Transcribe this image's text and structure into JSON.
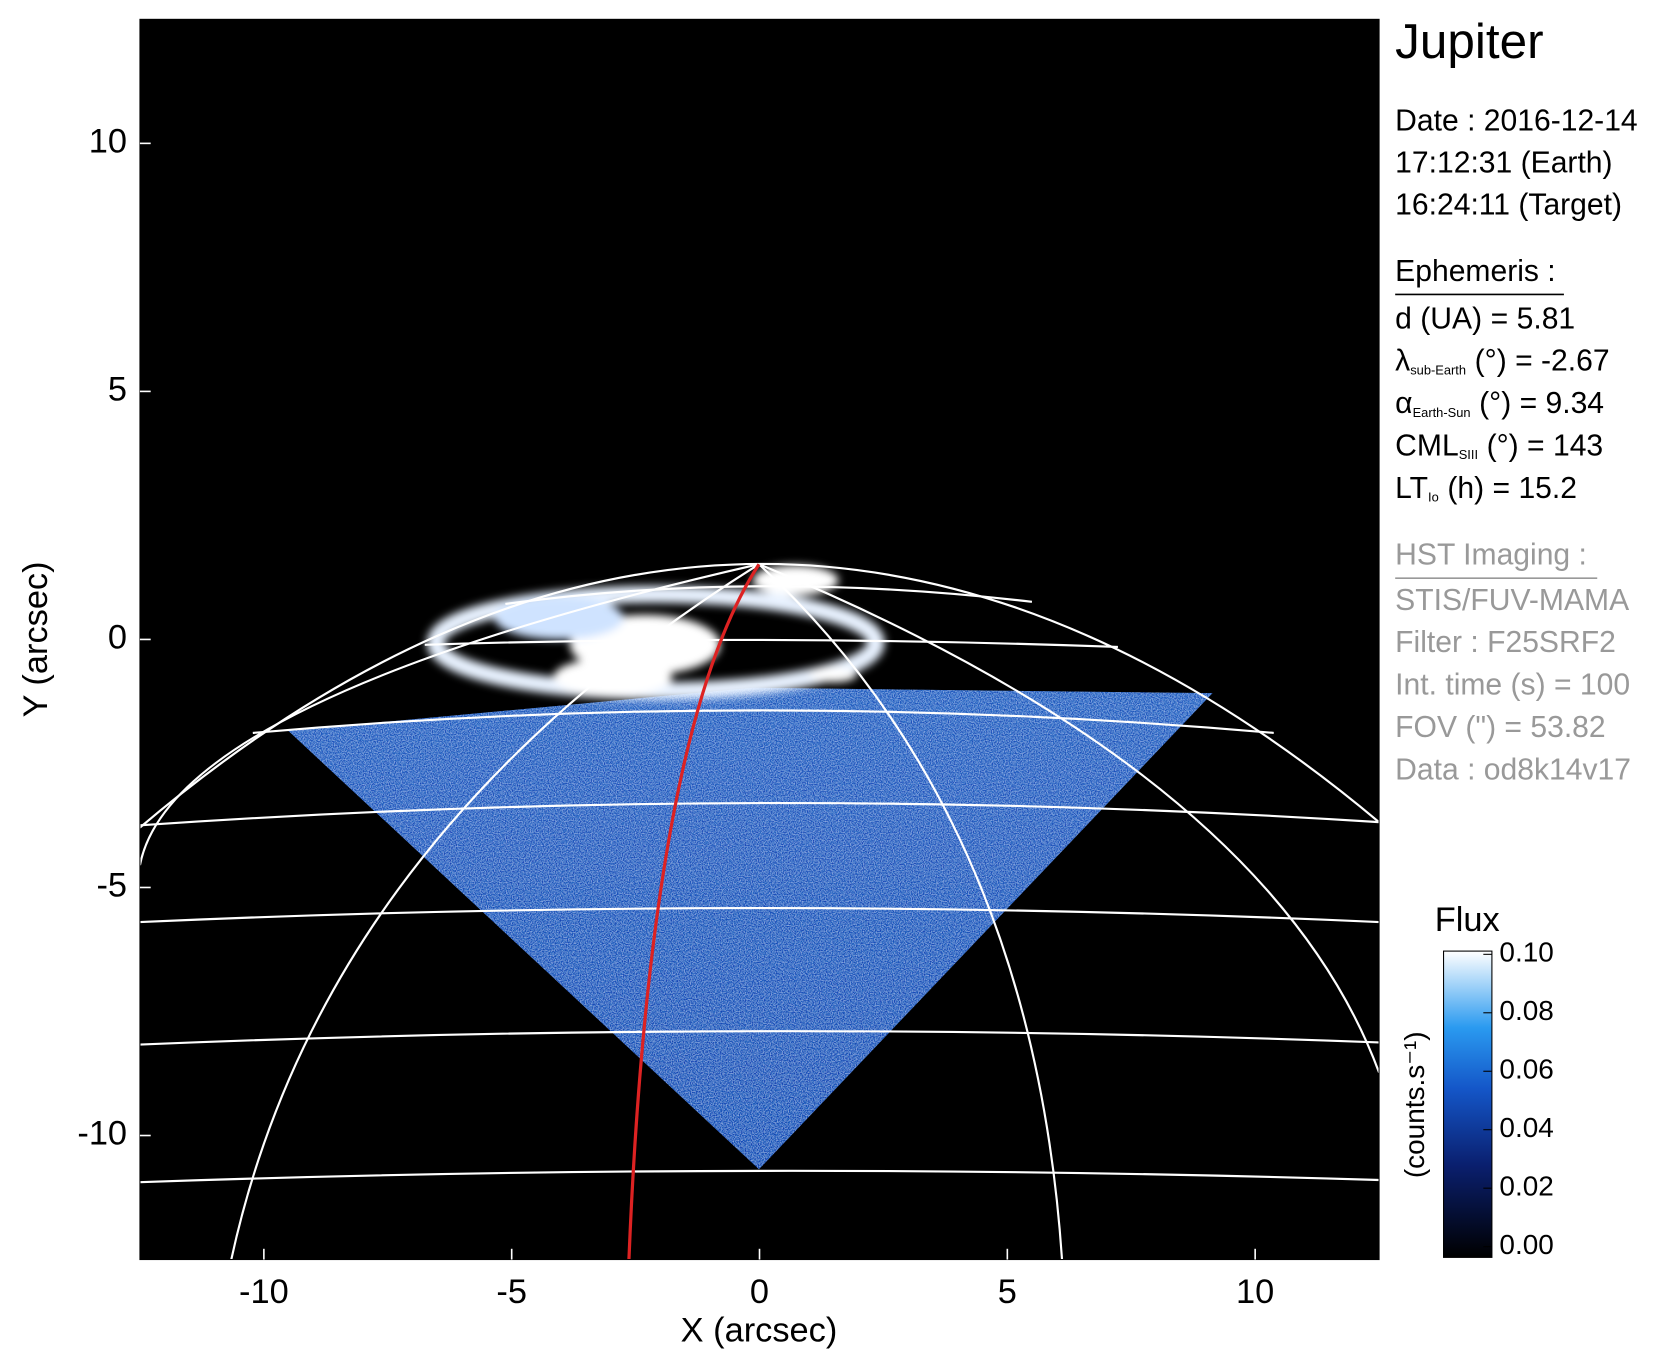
{
  "chart_data": {
    "type": "image",
    "title": "Jupiter",
    "xlabel": "X (arcsec)",
    "ylabel": "Y (arcsec)",
    "xlim": [
      -12.5,
      12.5
    ],
    "ylim": [
      -12.5,
      12.5
    ],
    "xticks": [
      -10,
      -5,
      0,
      5,
      10
    ],
    "yticks": [
      -10,
      -5,
      0,
      5,
      10
    ],
    "date_lines": [
      "Date : 2016-12-14",
      "17:12:31 (Earth)",
      "16:24:11 (Target)"
    ],
    "ephemeris": {
      "heading": "Ephemeris :",
      "items": [
        {
          "symbol": "d (UA)",
          "text": "= 5.81"
        },
        {
          "symbol": "λ",
          "sub": "sub-Earth",
          "text": "(°) = -2.67"
        },
        {
          "symbol": "α",
          "sub": "Earth-Sun",
          "text": "(°) = 9.34"
        },
        {
          "symbol": "CML",
          "sub": "SIII",
          "text": "(°) = 143"
        },
        {
          "symbol": "LT",
          "sub": "Io",
          "text": "(h) = 15.2"
        }
      ]
    },
    "instrument": {
      "heading": "HST Imaging :",
      "lines": [
        "STIS/FUV-MAMA",
        "Filter : F25SRF2",
        "Int. time (s) = 100",
        "FOV (\") = 53.82",
        "Data : od8k14v17"
      ]
    },
    "colorbar": {
      "title": "Flux",
      "label": "(counts.s⁻¹)",
      "lim": [
        0,
        0.1
      ],
      "ticks": [
        {
          "value": 0,
          "label": "0.00"
        },
        {
          "value": 0.02,
          "label": "0.02"
        },
        {
          "value": 0.04,
          "label": "0.04"
        },
        {
          "value": 0.06,
          "label": "0.06"
        },
        {
          "value": 0.08,
          "label": "0.08"
        },
        {
          "value": 0.1,
          "label": "0.10"
        }
      ]
    }
  }
}
